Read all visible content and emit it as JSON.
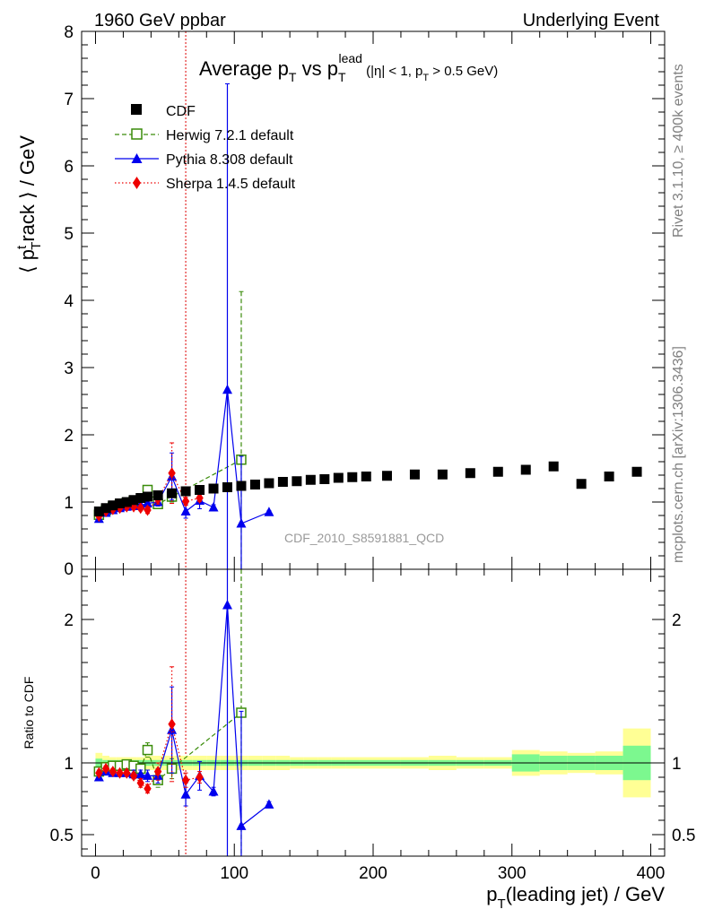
{
  "header": {
    "left": "1960 GeV ppbar",
    "right": "Underlying Event"
  },
  "side_labels": {
    "rivet": "Rivet 3.1.10, ≥ 400k events",
    "mcplots": "mcplots.cern.ch [arXiv:1306.3436]"
  },
  "watermark": "CDF_2010_S8591881_QCD",
  "title": {
    "main": "Average p",
    "sub1": "T",
    "vs": " vs p",
    "sub2": "T",
    "sup2": "lead",
    "cut1": " (|η| < 1, p",
    "sub3": "T",
    "cut2": " > 0.5 GeV)"
  },
  "ylabel_top": {
    "pre": "⟨ p",
    "sup": "t",
    "sub": "T",
    "post": "rack ⟩ / GeV"
  },
  "ylabel_ratio": "Ratio to CDF",
  "xlabel": {
    "pre": "p",
    "sub": "T",
    "post": "(leading jet) / GeV"
  },
  "chart_data": {
    "type": "scatter",
    "xlim": [
      -10,
      410
    ],
    "ylim_top": [
      0,
      8
    ],
    "ylim_ratio": [
      0.35,
      2.35
    ],
    "xticks": [
      0,
      100,
      200,
      300,
      400
    ],
    "yticks_top": [
      0,
      1,
      2,
      3,
      4,
      5,
      6,
      7,
      8
    ],
    "yticks_ratio": [
      0.5,
      1,
      2
    ],
    "vline_x": 65,
    "legend": {
      "position": "top-left",
      "entries": [
        "CDF",
        "Herwig 7.2.1 default",
        "Pythia 8.308 default",
        "Sherpa 1.4.5 default"
      ]
    },
    "series": [
      {
        "name": "CDF",
        "color": "#000000",
        "marker": "square",
        "x": [
          2.5,
          7.5,
          12.5,
          17.5,
          22.5,
          27.5,
          32.5,
          37.5,
          45,
          55,
          65,
          75,
          85,
          95,
          105,
          115,
          125,
          135,
          145,
          155,
          165,
          175,
          185,
          195,
          210,
          230,
          250,
          270,
          290,
          310,
          330,
          350,
          370,
          390
        ],
        "y": [
          0.86,
          0.91,
          0.95,
          0.98,
          1.0,
          1.03,
          1.06,
          1.08,
          1.1,
          1.13,
          1.16,
          1.18,
          1.2,
          1.22,
          1.24,
          1.26,
          1.28,
          1.3,
          1.31,
          1.33,
          1.34,
          1.36,
          1.37,
          1.38,
          1.39,
          1.41,
          1.41,
          1.43,
          1.45,
          1.48,
          1.53,
          1.27,
          1.38,
          1.45
        ],
        "err": [
          0.02,
          0.02,
          0.02,
          0.02,
          0.02,
          0.02,
          0.02,
          0.02,
          0.02,
          0.02,
          0.02,
          0.02,
          0.02,
          0.02,
          0.02,
          0.02,
          0.02,
          0.02,
          0.02,
          0.02,
          0.02,
          0.02,
          0.02,
          0.02,
          0.03,
          0.03,
          0.03,
          0.03,
          0.03,
          0.03,
          0.04,
          0.05,
          0.05,
          0.06
        ]
      },
      {
        "name": "Herwig 7.2.1 default",
        "color": "#3a8c0a",
        "marker": "open-square",
        "linestyle": "dashed",
        "x": [
          2.5,
          7.5,
          12.5,
          17.5,
          22.5,
          27.5,
          32.5,
          37.5,
          45,
          55,
          105
        ],
        "y": [
          0.81,
          0.88,
          0.93,
          0.96,
          0.99,
          1.01,
          1.02,
          1.18,
          0.97,
          1.08,
          1.63
        ],
        "err": [
          0.02,
          0.02,
          0.02,
          0.02,
          0.02,
          0.03,
          0.03,
          0.06,
          0.06,
          0.08,
          2.5
        ],
        "ratio": [
          0.94,
          0.97,
          0.98,
          0.98,
          0.99,
          0.98,
          0.96,
          1.09,
          0.88,
          0.96,
          1.35
        ],
        "ratio_err": [
          0.02,
          0.02,
          0.02,
          0.02,
          0.02,
          0.03,
          0.03,
          0.05,
          0.05,
          0.07,
          2.0
        ]
      },
      {
        "name": "Pythia 8.308 default",
        "color": "#0000ee",
        "marker": "triangle",
        "linestyle": "solid",
        "x": [
          2.5,
          7.5,
          12.5,
          17.5,
          22.5,
          27.5,
          32.5,
          37.5,
          45,
          55,
          65,
          75,
          85,
          95,
          105,
          125
        ],
        "y": [
          0.75,
          0.84,
          0.88,
          0.91,
          0.93,
          0.94,
          0.95,
          0.98,
          1.0,
          1.38,
          0.86,
          1.02,
          0.92,
          2.67,
          0.68,
          0.85
        ],
        "err": [
          0.02,
          0.02,
          0.02,
          0.02,
          0.02,
          0.03,
          0.04,
          0.05,
          0.06,
          0.35,
          0.1,
          0.12,
          0.04,
          4.55,
          1.0,
          0.02
        ],
        "ratio": [
          0.9,
          0.94,
          0.93,
          0.93,
          0.93,
          0.92,
          0.92,
          0.91,
          0.91,
          1.23,
          0.78,
          0.91,
          0.8,
          2.1,
          0.56,
          0.71
        ],
        "ratio_err": [
          0.02,
          0.02,
          0.02,
          0.02,
          0.02,
          0.03,
          0.03,
          0.04,
          0.05,
          0.3,
          0.08,
          0.1,
          0.03,
          2.5,
          0.8,
          0.02
        ]
      },
      {
        "name": "Sherpa 1.4.5 default",
        "color": "#ee0000",
        "marker": "diamond",
        "linestyle": "dotted",
        "x": [
          2.5,
          7.5,
          12.5,
          17.5,
          22.5,
          27.5,
          32.5,
          37.5,
          45,
          55,
          65,
          75
        ],
        "y": [
          0.79,
          0.86,
          0.89,
          0.91,
          0.93,
          0.93,
          0.91,
          0.88,
          1.04,
          1.43,
          1.01,
          1.06
        ],
        "err": [
          0.02,
          0.02,
          0.02,
          0.02,
          0.02,
          0.03,
          0.04,
          0.05,
          0.07,
          0.45,
          0.06,
          0.05
        ],
        "ratio": [
          0.93,
          0.96,
          0.94,
          0.93,
          0.93,
          0.91,
          0.86,
          0.82,
          0.94,
          1.27,
          0.88,
          0.9
        ],
        "ratio_err": [
          0.02,
          0.02,
          0.02,
          0.02,
          0.02,
          0.02,
          0.03,
          0.03,
          0.06,
          0.4,
          0.05,
          0.04
        ]
      }
    ],
    "ratio_bands": {
      "x_edges": [
        0,
        5,
        10,
        15,
        20,
        25,
        30,
        35,
        40,
        50,
        60,
        70,
        80,
        90,
        100,
        110,
        120,
        130,
        140,
        150,
        160,
        170,
        180,
        190,
        200,
        220,
        240,
        260,
        280,
        300,
        320,
        340,
        360,
        380,
        400
      ],
      "stat_half": [
        0.03,
        0.02,
        0.02,
        0.02,
        0.02,
        0.02,
        0.02,
        0.02,
        0.02,
        0.02,
        0.02,
        0.02,
        0.02,
        0.02,
        0.02,
        0.02,
        0.02,
        0.02,
        0.02,
        0.02,
        0.02,
        0.02,
        0.02,
        0.02,
        0.02,
        0.02,
        0.02,
        0.02,
        0.02,
        0.06,
        0.05,
        0.05,
        0.05,
        0.12
      ],
      "total_half": [
        0.07,
        0.05,
        0.04,
        0.04,
        0.04,
        0.04,
        0.04,
        0.05,
        0.05,
        0.05,
        0.05,
        0.05,
        0.05,
        0.05,
        0.05,
        0.05,
        0.05,
        0.05,
        0.04,
        0.04,
        0.04,
        0.04,
        0.04,
        0.04,
        0.04,
        0.04,
        0.05,
        0.04,
        0.04,
        0.09,
        0.08,
        0.07,
        0.08,
        0.24
      ]
    },
    "colors": {
      "band_stat": "#7cf88f",
      "band_total": "#ffff95",
      "vline": "#dd0000"
    }
  }
}
